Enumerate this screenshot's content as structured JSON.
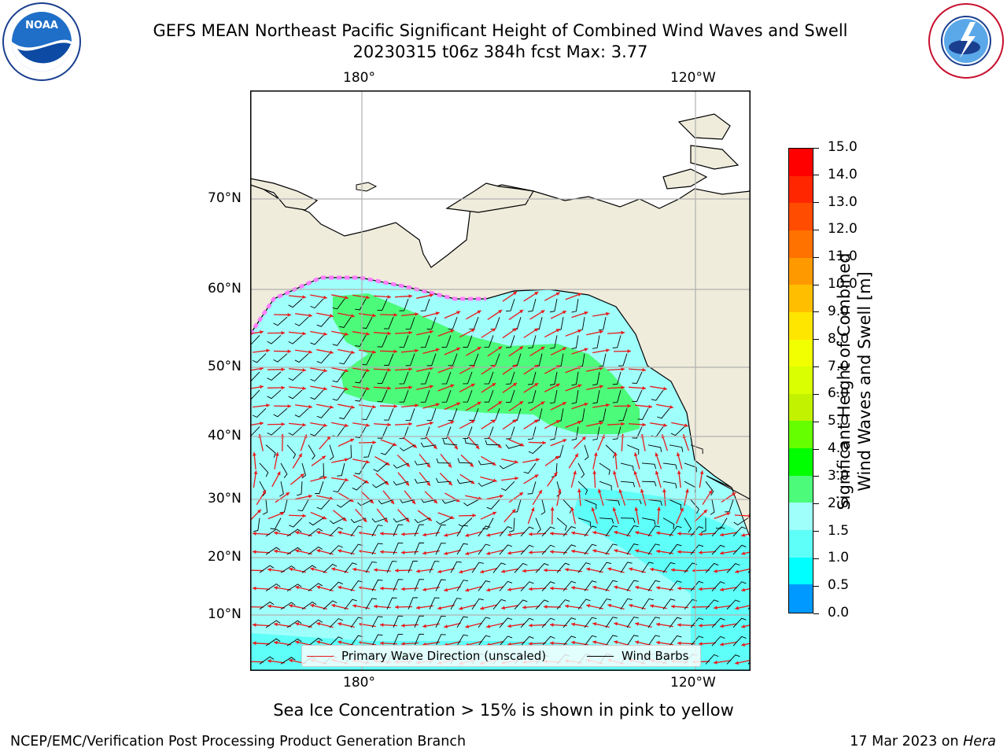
{
  "header": {
    "title_line1": "GEFS MEAN Northeast Pacific Significant Height of Combined Wind Waves and Swell",
    "title_line2": "20230315 t06z 384h fcst   Max: 3.77"
  },
  "logos": {
    "left": {
      "icon": "noaa-logo-icon",
      "text": "NOAA"
    },
    "right": {
      "icon": "nws-logo-icon",
      "ring_text": "NATIONAL WEATHER SERVICE"
    }
  },
  "map": {
    "lon_labels": [
      "180°",
      "120°W"
    ],
    "lat_labels": [
      "70°N",
      "60°N",
      "50°N",
      "40°N",
      "30°N",
      "20°N",
      "10°N"
    ],
    "colors": {
      "land": "#efecdc",
      "ocean_low": "#9ffffb",
      "ocean_mid": "#5efff8",
      "wave_3_4": "#4cfb79",
      "arrow": "#e8191b",
      "barb": "#000000",
      "ice": "#ff7dff"
    }
  },
  "legend": {
    "primary_wave": "Primary Wave Direction (unscaled)",
    "wind_barbs": "Wind Barbs"
  },
  "colorbar": {
    "label_line1": "Significant Height of Combined",
    "label_line2": "Wind Waves and Swell [m]",
    "ticks": [
      "15.0",
      "14.0",
      "13.0",
      "12.0",
      "11.0",
      "10.0",
      "9.0",
      "8.0",
      "7.0",
      "6.0",
      "5.0",
      "4.0",
      "3.0",
      "2.0",
      "1.5",
      "1.0",
      "0.5",
      "0.0"
    ],
    "colors": [
      "#ff0000",
      "#ff2600",
      "#ff4c00",
      "#ff7200",
      "#ff9900",
      "#ffbf00",
      "#ffe600",
      "#f2ff00",
      "#d9ff00",
      "#c2f200",
      "#66ff00",
      "#00ff00",
      "#4cfb79",
      "#9ffffb",
      "#5efff8",
      "#00ffff",
      "#0099ff",
      "#0000ff"
    ]
  },
  "footer": {
    "note": "Sea Ice Concentration > 15% is shown in pink to yellow",
    "left": "NCEP/EMC/Verification Post Processing Product Generation Branch",
    "right_date": "17 Mar 2023 on ",
    "right_machine": "Hera"
  }
}
